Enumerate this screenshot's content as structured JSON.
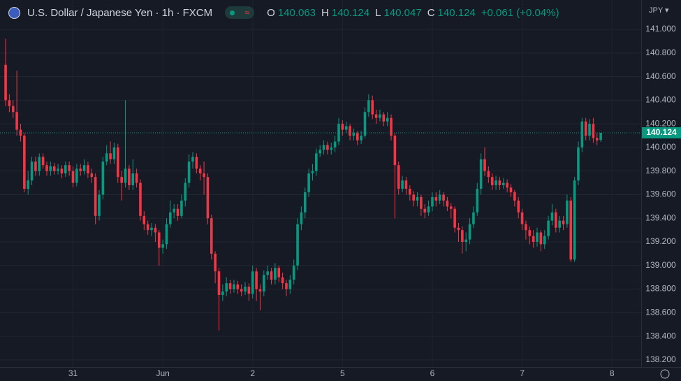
{
  "header": {
    "title": "U.S. Dollar / Japanese Yen · 1h · FXCM",
    "open_label": "O",
    "high_label": "H",
    "low_label": "L",
    "close_label": "C",
    "change": "+0.061 (+0.04%)",
    "currency": "JPY"
  },
  "chart_data": {
    "type": "candlestick",
    "up_color": "#089981",
    "down_color": "#f23645",
    "grid": true,
    "ylim": [
      138.14,
      141.249
    ],
    "yticks": [
      {
        "value": 138.2,
        "label": "138.200"
      },
      {
        "value": 138.4,
        "label": "138.400"
      },
      {
        "value": 138.6,
        "label": "138.600"
      },
      {
        "value": 138.8,
        "label": "138.800"
      },
      {
        "value": 139.0,
        "label": "139.000"
      },
      {
        "value": 139.2,
        "label": "139.200"
      },
      {
        "value": 139.4,
        "label": "139.400"
      },
      {
        "value": 139.6,
        "label": "139.600"
      },
      {
        "value": 139.8,
        "label": "139.800"
      },
      {
        "value": 140.0,
        "label": "140.000"
      },
      {
        "value": 140.2,
        "label": "140.200"
      },
      {
        "value": 140.4,
        "label": "140.400"
      },
      {
        "value": 140.6,
        "label": "140.600"
      },
      {
        "value": 140.8,
        "label": "140.800"
      },
      {
        "value": 141.0,
        "label": "141.000"
      }
    ],
    "xlim": [
      -1.5,
      169.8
    ],
    "xticks": [
      {
        "value": 18,
        "label": "31"
      },
      {
        "value": 42,
        "label": "Jun"
      },
      {
        "value": 66,
        "label": "2"
      },
      {
        "value": 90,
        "label": "5"
      },
      {
        "value": 114,
        "label": "6"
      },
      {
        "value": 138,
        "label": "7"
      },
      {
        "value": 162,
        "label": "8"
      }
    ],
    "open": [
      140.7,
      140.4,
      140.35,
      140.3,
      140.15,
      140.1,
      139.65,
      139.72,
      139.88,
      139.8,
      139.92,
      139.85,
      139.8,
      139.84,
      139.8,
      139.82,
      139.78,
      139.85,
      139.8,
      139.7,
      139.82,
      139.8,
      139.85,
      139.78,
      139.75,
      139.42,
      139.6,
      139.88,
      139.95,
      139.9,
      140.0,
      139.75,
      139.7,
      139.82,
      139.68,
      139.78,
      139.7,
      139.42,
      139.35,
      139.3,
      139.32,
      139.28,
      139.15,
      139.18,
      139.35,
      139.45,
      139.48,
      139.42,
      139.55,
      139.7,
      139.88,
      139.92,
      139.82,
      139.78,
      139.75,
      139.4,
      139.1,
      138.95,
      138.75,
      138.78,
      138.85,
      138.8,
      138.84,
      138.8,
      138.78,
      138.82,
      138.76,
      138.95,
      138.8,
      138.78,
      138.92,
      138.95,
      138.88,
      138.98,
      138.9,
      138.85,
      138.8,
      138.88,
      139.0,
      139.35,
      139.45,
      139.62,
      139.78,
      139.8,
      139.95,
      139.98,
      140.02,
      139.98,
      140.0,
      140.05,
      140.2,
      140.15,
      140.18,
      140.1,
      140.12,
      140.06,
      140.1,
      140.3,
      140.4,
      140.28,
      140.25,
      140.28,
      140.22,
      140.25,
      140.1,
      139.85,
      139.65,
      139.72,
      139.65,
      139.6,
      139.55,
      139.58,
      139.48,
      139.45,
      139.5,
      139.58,
      139.55,
      139.6,
      139.55,
      139.5,
      139.48,
      139.32,
      139.3,
      139.2,
      139.22,
      139.35,
      139.45,
      139.65,
      139.9,
      139.8,
      139.75,
      139.68,
      139.72,
      139.68,
      139.7,
      139.66,
      139.62,
      139.55,
      139.45,
      139.35,
      139.3,
      139.25,
      139.2,
      139.28,
      139.18,
      139.25,
      139.38,
      139.45,
      139.32,
      139.38,
      139.35,
      139.55,
      139.05,
      139.72,
      140.0,
      140.22,
      140.1,
      140.2,
      140.08,
      140.063
    ],
    "high": [
      140.92,
      140.45,
      140.4,
      140.65,
      140.2,
      140.12,
      139.8,
      139.92,
      139.92,
      139.95,
      139.95,
      139.88,
      139.88,
      139.87,
      139.86,
      139.85,
      139.88,
      139.88,
      139.84,
      139.86,
      139.86,
      139.9,
      139.88,
      139.82,
      139.78,
      139.64,
      139.92,
      140.02,
      140.05,
      140.04,
      140.03,
      139.8,
      140.4,
      139.85,
      139.9,
      139.82,
      139.73,
      139.46,
      139.38,
      139.36,
      139.35,
      139.3,
      139.22,
      139.4,
      139.55,
      139.52,
      139.52,
      139.6,
      139.74,
      139.94,
      139.96,
      139.95,
      139.85,
      139.88,
      139.78,
      139.43,
      139.12,
      138.98,
      138.84,
      138.9,
      138.88,
      138.88,
      138.87,
      138.84,
      138.86,
      138.85,
      139.0,
      138.98,
      138.84,
      138.96,
      139.0,
      138.98,
      139.02,
      139.0,
      138.94,
      138.88,
      138.92,
      139.05,
      139.4,
      139.5,
      139.66,
      139.82,
      139.86,
      139.99,
      140.02,
      140.06,
      140.05,
      140.04,
      140.1,
      140.25,
      140.23,
      140.22,
      140.2,
      140.16,
      140.14,
      140.14,
      140.34,
      140.45,
      140.44,
      140.32,
      140.32,
      140.3,
      140.3,
      140.28,
      140.12,
      139.88,
      139.76,
      139.75,
      139.68,
      139.63,
      139.62,
      139.6,
      139.52,
      139.55,
      139.62,
      139.62,
      139.64,
      139.62,
      139.58,
      139.53,
      139.5,
      139.36,
      139.33,
      139.28,
      139.4,
      139.5,
      139.7,
      139.95,
      140.0,
      139.84,
      139.78,
      139.76,
      139.75,
      139.74,
      139.73,
      139.69,
      139.64,
      139.58,
      139.48,
      139.38,
      139.33,
      139.3,
      139.32,
      139.3,
      139.3,
      139.42,
      139.52,
      139.48,
      139.42,
      139.42,
      139.6,
      139.58,
      139.75,
      140.05,
      140.25,
      140.25,
      140.24,
      140.25,
      140.12,
      140.124
    ],
    "low": [
      140.35,
      140.3,
      140.25,
      140.1,
      140.05,
      139.62,
      139.6,
      139.68,
      139.76,
      139.76,
      139.82,
      139.76,
      139.76,
      139.77,
      139.77,
      139.74,
      139.75,
      139.76,
      139.66,
      139.67,
      139.76,
      139.77,
      139.74,
      139.7,
      139.35,
      139.38,
      139.56,
      139.85,
      139.86,
      139.86,
      139.7,
      139.55,
      139.66,
      139.64,
      139.64,
      139.66,
      139.38,
      139.3,
      139.26,
      139.25,
      139.2,
      139.0,
      139.1,
      139.14,
      139.32,
      139.4,
      139.38,
      139.4,
      139.5,
      139.66,
      139.82,
      139.78,
      139.72,
      139.6,
      139.35,
      139.05,
      138.85,
      138.45,
      138.7,
      138.74,
      138.76,
      138.77,
      138.76,
      138.74,
      138.75,
      138.7,
      138.72,
      138.7,
      138.62,
      138.74,
      138.88,
      138.84,
      138.84,
      138.86,
      138.8,
      138.74,
      138.76,
      138.84,
      138.96,
      139.3,
      139.4,
      139.58,
      139.72,
      139.76,
      139.92,
      139.94,
      139.94,
      139.94,
      139.96,
      140.02,
      140.1,
      140.12,
      140.06,
      140.06,
      140.02,
      140.03,
      140.08,
      140.26,
      140.24,
      140.2,
      140.22,
      140.18,
      140.18,
      140.06,
      139.4,
      139.6,
      139.62,
      139.6,
      139.55,
      139.5,
      139.5,
      139.42,
      139.4,
      139.42,
      139.46,
      139.5,
      139.52,
      139.5,
      139.46,
      139.4,
      139.28,
      139.2,
      139.1,
      139.12,
      139.18,
      139.32,
      139.42,
      139.6,
      139.76,
      139.7,
      139.64,
      139.64,
      139.64,
      139.65,
      139.62,
      139.58,
      139.5,
      139.4,
      139.3,
      139.22,
      139.18,
      139.15,
      139.16,
      139.12,
      139.14,
      139.22,
      139.34,
      139.28,
      139.28,
      139.3,
      139.32,
      139.03,
      139.03,
      139.68,
      139.96,
      140.06,
      140.06,
      140.04,
      140.02,
      140.047
    ],
    "close": [
      140.4,
      140.35,
      140.3,
      140.15,
      140.1,
      139.65,
      139.72,
      139.88,
      139.8,
      139.92,
      139.85,
      139.8,
      139.84,
      139.8,
      139.82,
      139.78,
      139.85,
      139.8,
      139.7,
      139.82,
      139.8,
      139.85,
      139.78,
      139.75,
      139.42,
      139.6,
      139.88,
      139.95,
      139.9,
      140.0,
      139.75,
      139.7,
      139.82,
      139.68,
      139.78,
      139.7,
      139.42,
      139.35,
      139.3,
      139.32,
      139.28,
      139.15,
      139.18,
      139.35,
      139.45,
      139.48,
      139.42,
      139.55,
      139.7,
      139.88,
      139.92,
      139.82,
      139.78,
      139.75,
      139.4,
      139.1,
      138.95,
      138.75,
      138.78,
      138.85,
      138.8,
      138.84,
      138.8,
      138.78,
      138.82,
      138.76,
      138.95,
      138.8,
      138.78,
      138.92,
      138.95,
      138.88,
      138.98,
      138.9,
      138.85,
      138.8,
      138.88,
      139.0,
      139.35,
      139.45,
      139.62,
      139.78,
      139.8,
      139.95,
      139.98,
      140.02,
      139.98,
      140.0,
      140.05,
      140.2,
      140.15,
      140.18,
      140.1,
      140.12,
      140.06,
      140.1,
      140.3,
      140.4,
      140.28,
      140.25,
      140.28,
      140.22,
      140.25,
      140.1,
      139.85,
      139.65,
      139.72,
      139.65,
      139.6,
      139.55,
      139.58,
      139.48,
      139.45,
      139.5,
      139.58,
      139.55,
      139.6,
      139.55,
      139.5,
      139.48,
      139.32,
      139.3,
      139.2,
      139.22,
      139.35,
      139.45,
      139.65,
      139.9,
      139.8,
      139.75,
      139.68,
      139.72,
      139.68,
      139.7,
      139.66,
      139.62,
      139.55,
      139.45,
      139.35,
      139.3,
      139.25,
      139.2,
      139.28,
      139.18,
      139.25,
      139.38,
      139.45,
      139.32,
      139.38,
      139.35,
      139.55,
      139.05,
      139.72,
      140.0,
      140.22,
      140.1,
      140.2,
      140.08,
      140.06,
      140.124
    ]
  }
}
